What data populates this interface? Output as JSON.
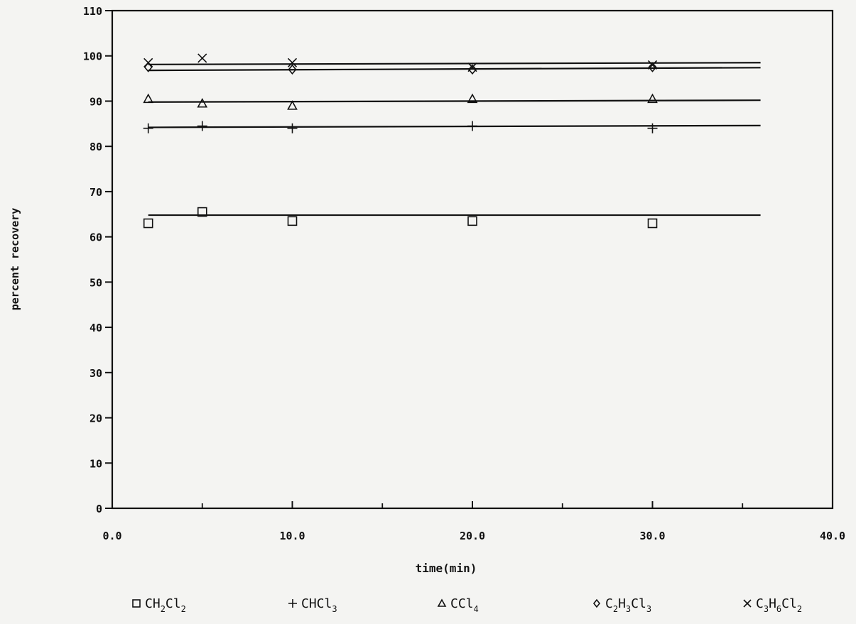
{
  "chart_data": {
    "type": "scatter",
    "title": "",
    "xlabel": "time(min)",
    "ylabel": "percent recovery",
    "xlim": [
      0,
      40
    ],
    "ylim": [
      0,
      110
    ],
    "xticks": [
      "0.0",
      "10.0",
      "20.0",
      "30.0",
      "40.0"
    ],
    "yticks": [
      "0",
      "10",
      "20",
      "30",
      "40",
      "50",
      "60",
      "70",
      "80",
      "90",
      "100",
      "110"
    ],
    "grid": false,
    "legend_position": "bottom",
    "series": [
      {
        "name": "CH2Cl2",
        "legend": {
          "marker_glyph": "□",
          "parts": [
            [
              "CH",
              ""
            ],
            [
              "2",
              "sub"
            ],
            [
              "Cl",
              ""
            ],
            [
              "2",
              "sub"
            ]
          ]
        },
        "marker": "square",
        "x": [
          2,
          5,
          10,
          20,
          30
        ],
        "y": [
          63,
          65.5,
          63.5,
          63.5,
          63
        ],
        "fit_y": [
          64.8,
          64.8
        ]
      },
      {
        "name": "CHCl3",
        "legend": {
          "marker_glyph": "+",
          "parts": [
            [
              "CHCl",
              ""
            ],
            [
              "3",
              "sub"
            ]
          ]
        },
        "marker": "plus",
        "x": [
          2,
          5,
          10,
          20,
          30
        ],
        "y": [
          84,
          84.5,
          84,
          84.5,
          84
        ],
        "fit_y": [
          84.2,
          84.6
        ]
      },
      {
        "name": "CCl4",
        "legend": {
          "marker_glyph": "△",
          "parts": [
            [
              "CCl",
              ""
            ],
            [
              "4",
              "sub"
            ]
          ]
        },
        "marker": "triangle",
        "x": [
          2,
          5,
          10,
          20,
          30
        ],
        "y": [
          90.5,
          89.5,
          89,
          90.5,
          90.5
        ],
        "fit_y": [
          89.8,
          90.2
        ]
      },
      {
        "name": "C2H3Cl3",
        "legend": {
          "marker_glyph": "◇",
          "parts": [
            [
              "C",
              ""
            ],
            [
              "2",
              "sub"
            ],
            [
              "H",
              ""
            ],
            [
              "3",
              "sub"
            ],
            [
              "Cl",
              ""
            ],
            [
              "3",
              "sub"
            ]
          ]
        },
        "marker": "diamond",
        "x": [
          2,
          10,
          20,
          30
        ],
        "y": [
          97.5,
          97,
          97,
          97.5
        ],
        "fit_y": [
          96.8,
          97.4
        ]
      },
      {
        "name": "C3H6Cl2",
        "legend": {
          "marker_glyph": "×",
          "parts": [
            [
              "C",
              ""
            ],
            [
              "3",
              "sub"
            ],
            [
              "H",
              ""
            ],
            [
              "6",
              "sub"
            ],
            [
              "Cl",
              ""
            ],
            [
              "2",
              "sub"
            ]
          ]
        },
        "marker": "x",
        "x": [
          2,
          5,
          10,
          20,
          30
        ],
        "y": [
          98.5,
          99.5,
          98.5,
          97.5,
          98
        ],
        "fit_y": [
          98.1,
          98.5
        ]
      }
    ],
    "fit_x_range": [
      2,
      36
    ]
  }
}
